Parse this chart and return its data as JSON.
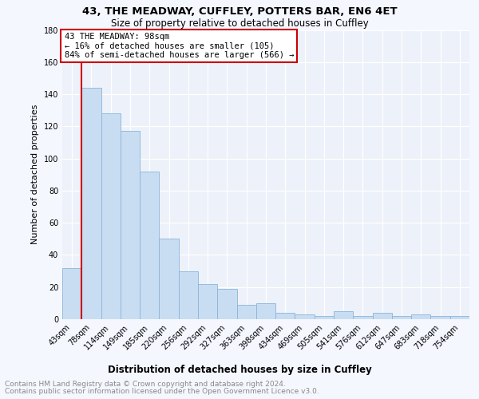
{
  "title": "43, THE MEADWAY, CUFFLEY, POTTERS BAR, EN6 4ET",
  "subtitle": "Size of property relative to detached houses in Cuffley",
  "xlabel": "Distribution of detached houses by size in Cuffley",
  "ylabel": "Number of detached properties",
  "categories": [
    "43sqm",
    "78sqm",
    "114sqm",
    "149sqm",
    "185sqm",
    "220sqm",
    "256sqm",
    "292sqm",
    "327sqm",
    "363sqm",
    "398sqm",
    "434sqm",
    "469sqm",
    "505sqm",
    "541sqm",
    "576sqm",
    "612sqm",
    "647sqm",
    "683sqm",
    "718sqm",
    "754sqm"
  ],
  "values": [
    32,
    144,
    128,
    117,
    92,
    50,
    30,
    22,
    19,
    9,
    10,
    4,
    3,
    2,
    5,
    2,
    4,
    2,
    3,
    2,
    2
  ],
  "bar_color": "#c9ddf2",
  "bar_edge_color": "#8ab4d8",
  "vline_color": "#cc0000",
  "vline_bar_index": 1,
  "annotation_line1": "43 THE MEADWAY: 98sqm",
  "annotation_line2": "← 16% of detached houses are smaller (105)",
  "annotation_line3": "84% of semi-detached houses are larger (566) →",
  "annotation_box_edge_color": "#cc0000",
  "ylim_max": 180,
  "yticks": [
    0,
    20,
    40,
    60,
    80,
    100,
    120,
    140,
    160,
    180
  ],
  "footer1": "Contains HM Land Registry data © Crown copyright and database right 2024.",
  "footer2": "Contains public sector information licensed under the Open Government Licence v3.0.",
  "bg_color": "#f5f7ff",
  "plot_bg_color": "#edf1fa",
  "grid_color": "#ffffff",
  "title_fontsize": 9.5,
  "subtitle_fontsize": 8.5,
  "ylabel_fontsize": 8,
  "xlabel_fontsize": 8.5,
  "tick_fontsize": 7,
  "footer_fontsize": 6.5,
  "annotation_fontsize": 7.5
}
